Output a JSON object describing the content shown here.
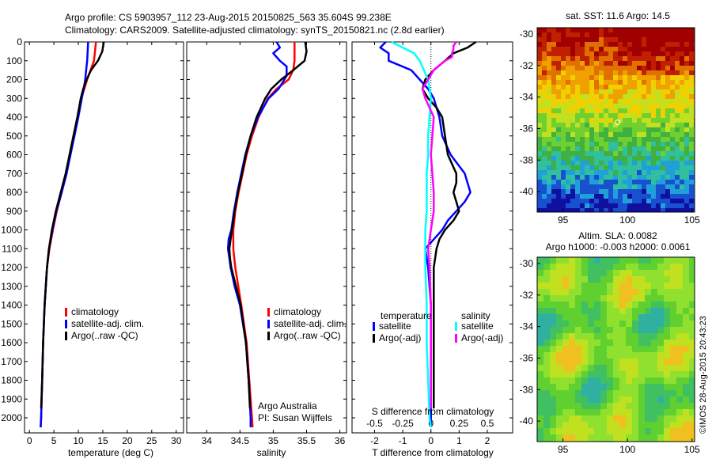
{
  "header": {
    "line1": "Argo profile: CS 5903957_112 23-Aug-2015 20150825_563 35.604S 99.238E",
    "line2": "Climatology: CARS2009. Satellite-adjusted climatology: synTS_20150821.nc (2.8d earlier)"
  },
  "depth_ticks": [
    "0",
    "100",
    "200",
    "300",
    "400",
    "500",
    "600",
    "700",
    "800",
    "900",
    "1000",
    "1100",
    "1200",
    "1300",
    "1400",
    "1500",
    "1600",
    "1700",
    "1800",
    "1900",
    "2000"
  ],
  "chart_data": [
    {
      "type": "line",
      "id": "temperature",
      "xlabel": "temperature (deg C)",
      "ylabel": "",
      "xlim": [
        -1,
        31.5
      ],
      "ylim": [
        2080,
        0
      ],
      "xticks": [
        "0",
        "5",
        "10",
        "15",
        "20",
        "25",
        "30"
      ],
      "xtick_values": [
        0,
        5,
        10,
        15,
        20,
        25,
        30
      ],
      "legend": [
        "climatology",
        "satellite-adj. clim.",
        "Argo(..raw -QC)"
      ],
      "series": [
        {
          "name": "climatology",
          "color": "#ff0000",
          "depth": [
            0,
            50,
            100,
            150,
            200,
            250,
            300,
            400,
            500,
            600,
            700,
            800,
            900,
            1000,
            1100,
            1200,
            1400,
            1600,
            1800,
            2000,
            2050
          ],
          "values": [
            13.6,
            13.4,
            13.2,
            12.5,
            11.8,
            11.2,
            10.6,
            9.9,
            9.1,
            8.3,
            7.5,
            6.6,
            5.6,
            4.8,
            4.1,
            3.6,
            3.1,
            2.8,
            2.6,
            2.4,
            2.3
          ]
        },
        {
          "name": "satellite-adj. clim.",
          "color": "#0000ff",
          "depth": [
            0,
            50,
            100,
            150,
            200,
            250,
            300,
            400,
            500,
            600,
            700,
            800,
            900,
            1000,
            1100,
            1200,
            1400,
            1600,
            1800,
            2000,
            2050
          ],
          "values": [
            12.0,
            11.9,
            11.8,
            11.6,
            11.4,
            11.1,
            10.7,
            10.0,
            9.2,
            8.4,
            7.6,
            6.6,
            5.5,
            4.7,
            4.0,
            3.6,
            3.1,
            2.8,
            2.6,
            2.4,
            2.3
          ]
        },
        {
          "name": "Argo(..raw -QC)",
          "color": "#000000",
          "depth": [
            0,
            50,
            100,
            150,
            200,
            250,
            300,
            400,
            500,
            600,
            700,
            800,
            900,
            1000,
            1100,
            1200,
            1400,
            1600,
            1800,
            1950
          ],
          "values": [
            15.2,
            14.9,
            14.0,
            12.6,
            11.7,
            11.0,
            10.5,
            9.8,
            9.0,
            8.2,
            7.4,
            6.4,
            5.4,
            4.6,
            4.0,
            3.6,
            3.1,
            2.8,
            2.6,
            2.4
          ]
        }
      ]
    },
    {
      "type": "line",
      "id": "salinity",
      "xlabel": "salinity",
      "ylabel": "",
      "xlim": [
        33.7,
        36.1
      ],
      "ylim": [
        2080,
        0
      ],
      "xticks": [
        "34",
        "34.5",
        "35",
        "35.5",
        "36"
      ],
      "xtick_values": [
        34,
        34.5,
        35,
        35.5,
        36
      ],
      "legend": [
        "climatology",
        "satellite-adj. clim.",
        "Argo(..raw -QC)"
      ],
      "series": [
        {
          "name": "climatology",
          "color": "#ff0000",
          "depth": [
            0,
            50,
            100,
            150,
            200,
            250,
            300,
            400,
            500,
            600,
            700,
            800,
            900,
            1000,
            1100,
            1200,
            1400,
            1600,
            1800,
            2000,
            2050
          ],
          "values": [
            35.32,
            35.32,
            35.32,
            35.3,
            35.23,
            35.05,
            34.92,
            34.78,
            34.68,
            34.6,
            34.54,
            34.48,
            34.43,
            34.4,
            34.4,
            34.43,
            34.52,
            34.6,
            34.64,
            34.68,
            34.69
          ]
        },
        {
          "name": "satellite-adj. clim.",
          "color": "#0000ff",
          "depth": [
            0,
            30,
            60,
            100,
            130,
            180,
            250,
            300,
            400,
            500,
            600,
            700,
            800,
            900,
            1000,
            1050,
            1100,
            1150,
            1200,
            1300,
            1400,
            1600,
            1800,
            2000,
            2050
          ],
          "values": [
            35.05,
            35.1,
            35.0,
            35.1,
            35.2,
            35.2,
            35.08,
            34.93,
            34.77,
            34.66,
            34.58,
            34.52,
            34.46,
            34.41,
            34.37,
            34.33,
            34.32,
            34.34,
            34.36,
            34.42,
            34.5,
            34.59,
            34.63,
            34.66,
            34.66
          ]
        },
        {
          "name": "Argo(..raw -QC)",
          "color": "#000000",
          "depth": [
            0,
            50,
            100,
            150,
            200,
            250,
            300,
            400,
            500,
            600,
            700,
            800,
            900,
            1000,
            1050,
            1100,
            1150,
            1200,
            1300,
            1400,
            1600,
            1800,
            1950
          ],
          "values": [
            35.48,
            35.5,
            35.47,
            35.3,
            35.12,
            34.97,
            34.88,
            34.75,
            34.66,
            34.59,
            34.53,
            34.47,
            34.42,
            34.38,
            34.36,
            34.34,
            34.35,
            34.37,
            34.44,
            34.51,
            34.59,
            34.63,
            34.65
          ]
        }
      ]
    },
    {
      "type": "line",
      "id": "difference",
      "xlabel": "T difference from climatology",
      "ylabel": "",
      "xlim": [
        -2.8,
        2.9
      ],
      "ylim": [
        2080,
        0
      ],
      "xticks": [
        "-2",
        "-1",
        "0",
        "1",
        "2"
      ],
      "xtick_values": [
        -2,
        -1,
        0,
        1,
        2
      ],
      "top_xlabel": "S difference from climatology",
      "top_xticks": [
        "-0.5",
        "-0.25",
        "0",
        "0.25",
        "0.5"
      ],
      "top_xtick_values": [
        -2,
        -1,
        0,
        1,
        2
      ],
      "legend_titles": [
        "temperature",
        "salinity"
      ],
      "legend": [
        "satellite",
        "Argo(-adj)",
        "satellite",
        "Argo(-adj)"
      ],
      "series": [
        {
          "name": "satellite",
          "group": "temperature",
          "color": "#0000ff",
          "depth": [
            0,
            30,
            60,
            100,
            150,
            200,
            250,
            300,
            400,
            500,
            600,
            700,
            750,
            800,
            850,
            900,
            950,
            1000,
            1050,
            1100,
            1200,
            1400,
            1600,
            1800,
            2000,
            2050
          ],
          "values": [
            -1.6,
            -1.8,
            -1.5,
            -1.5,
            -0.7,
            -0.4,
            -0.1,
            0.1,
            0.3,
            0.4,
            0.7,
            1.2,
            1.3,
            1.4,
            1.2,
            0.9,
            0.6,
            0.4,
            0.1,
            -0.2,
            -0.1,
            0.0,
            0.0,
            0.0,
            0.0,
            0.0
          ]
        },
        {
          "name": "Argo(-adj)",
          "group": "temperature",
          "color": "#000000",
          "depth": [
            0,
            30,
            60,
            100,
            150,
            200,
            250,
            300,
            350,
            400,
            500,
            600,
            700,
            750,
            800,
            850,
            900,
            950,
            1000,
            1050,
            1100,
            1200,
            1400,
            1600,
            1800,
            1950
          ],
          "values": [
            1.6,
            1.3,
            0.8,
            0.5,
            0.1,
            -0.2,
            -0.3,
            -0.1,
            0.2,
            0.4,
            0.5,
            0.6,
            0.9,
            0.9,
            0.8,
            0.9,
            1.0,
            0.8,
            0.5,
            0.3,
            0.2,
            0.1,
            0.1,
            0.1,
            0.1,
            0.1
          ]
        },
        {
          "name": "satellite",
          "group": "salinity",
          "color": "#00ffff",
          "depth": [
            0,
            30,
            60,
            100,
            150,
            200,
            300,
            400,
            500,
            600,
            700,
            800,
            900,
            1000,
            1100,
            1200,
            1400,
            1600,
            1800,
            2000,
            2050
          ],
          "values": [
            -1.4,
            -1.0,
            -0.6,
            -0.4,
            -0.25,
            -0.1,
            0.0,
            -0.05,
            -0.1,
            -0.1,
            -0.15,
            -0.15,
            -0.15,
            -0.2,
            -0.2,
            -0.2,
            -0.15,
            -0.15,
            -0.1,
            -0.05,
            0.0
          ]
        },
        {
          "name": "Argo(-adj)",
          "group": "salinity",
          "color": "#ff00ff",
          "depth": [
            0,
            20,
            40,
            60,
            80,
            100,
            150,
            200,
            250,
            300,
            400,
            500,
            600,
            700,
            800,
            900,
            1000,
            1100,
            1200,
            1400,
            1600,
            1800,
            1950
          ],
          "values": [
            0.9,
            0.8,
            0.8,
            0.75,
            0.75,
            0.5,
            0.1,
            -0.1,
            -0.3,
            -0.2,
            0.1,
            0.05,
            0.0,
            0.05,
            0.1,
            0.1,
            0.0,
            -0.1,
            -0.05,
            0.0,
            0.0,
            0.0,
            0.0
          ]
        }
      ]
    },
    {
      "type": "heatmap",
      "id": "sst-map",
      "title": "sat. SST: 11.6 Argo: 14.5",
      "xlim": [
        93,
        105.2
      ],
      "ylim": [
        -41.3,
        -29.6
      ],
      "xticks": [
        "95",
        "100",
        "105"
      ],
      "xtick_values": [
        95,
        100,
        105
      ],
      "yticks": [
        "-30",
        "-32",
        "-34",
        "-36",
        "-38",
        "-40"
      ],
      "ytick_values": [
        -30,
        -32,
        -34,
        -36,
        -38,
        -40
      ],
      "colors": [
        "#1010a0",
        "#1850d0",
        "#20a0d8",
        "#30c0a0",
        "#40b040",
        "#70d030",
        "#c0e020",
        "#f0d000",
        "#f0a000",
        "#e07000",
        "#c02000",
        "#a00000"
      ],
      "marker": {
        "lon": 99.238,
        "lat": -35.604,
        "color": "#ffffff"
      }
    },
    {
      "type": "heatmap",
      "id": "sla-map",
      "title": "Altim. SLA: 0.0082",
      "subtitle": "Argo h1000: -0.003 h2000: 0.0061",
      "xlim": [
        93,
        105.2
      ],
      "ylim": [
        -41.3,
        -29.6
      ],
      "xticks": [
        "95",
        "100",
        "105"
      ],
      "xtick_values": [
        95,
        100,
        105
      ],
      "yticks": [
        "-30",
        "-32",
        "-34",
        "-36",
        "-38",
        "-40"
      ],
      "ytick_values": [
        -30,
        -32,
        -34,
        -36,
        -38,
        -40
      ],
      "colors": [
        "#30b0a0",
        "#40c060",
        "#60d030",
        "#90e030",
        "#c0e020",
        "#f0c020"
      ]
    }
  ],
  "credit": "©IMOS 28-Aug-2015 20:43:23",
  "annotation": {
    "org": "Argo Australia",
    "pi": "PI: Susan Wijffels"
  },
  "colors": {
    "climatology": "#ff0000",
    "satellite": "#0000ff",
    "argo": "#000000",
    "sal_satellite": "#00ffff",
    "sal_argo": "#ff00ff"
  }
}
